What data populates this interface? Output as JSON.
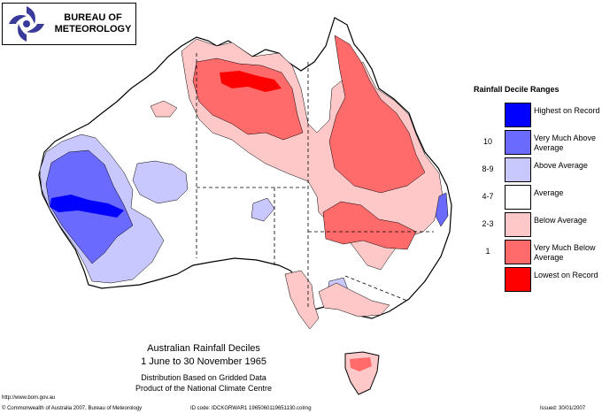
{
  "branding": {
    "org_line1": "BUREAU OF",
    "org_line2": "METEOROLOGY"
  },
  "map": {
    "title_line1": "Australian Rainfall Deciles",
    "title_line2": "1 June to 30 November 1965",
    "note_line1": "Distribution Based on Gridded Data",
    "note_line2": "Product of the National Climate Centre"
  },
  "legend": {
    "title": "Rainfall Decile Ranges",
    "items": [
      {
        "range": "",
        "label": "Highest on Record",
        "color": "#0000ff"
      },
      {
        "range": "10",
        "label": "Very Much Above Average",
        "color": "#6a6aff"
      },
      {
        "range": "8-9",
        "label": "Above Average",
        "color": "#c8c8ff"
      },
      {
        "range": "4-7",
        "label": "Average",
        "color": "#ffffff"
      },
      {
        "range": "2-3",
        "label": "Below Average",
        "color": "#ffc8c8"
      },
      {
        "range": "1",
        "label": "Very Much Below Average",
        "color": "#ff6a6a"
      },
      {
        "range": "",
        "label": "Lowest on Record",
        "color": "#ff0000"
      }
    ]
  },
  "footer": {
    "url": "http://www.bom.gov.au",
    "copyright": "© Commonwealth of Australia 2007, Bureau of Meteorology",
    "id": "ID code: IDCKGRWAR1 1965060119651130.colrng",
    "issued": "Issued: 30/01/2007"
  }
}
